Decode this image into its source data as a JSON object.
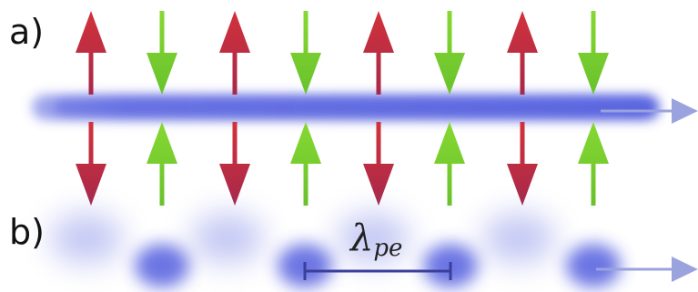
{
  "panels": {
    "a": {
      "label": "a)"
    },
    "b": {
      "label": "b)"
    }
  },
  "annotation": {
    "symbol": "λ",
    "subscript": "pe"
  },
  "colors": {
    "beam": "#5b66e0",
    "arrow_red": "#c8323c",
    "arrow_red_dark": "#a8284a",
    "arrow_green": "#7dd130",
    "arrow_green_dark": "#5fb42a",
    "propagation_arrow": "#9aa3dd",
    "scale_bar": "#3a3f9a"
  },
  "arrow_pattern": [
    "red-outward",
    "green-inward",
    "red-outward",
    "green-inward",
    "red-outward",
    "green-inward",
    "red-outward",
    "green-inward"
  ],
  "icons": {
    "propagation": "right-arrow-icon"
  }
}
